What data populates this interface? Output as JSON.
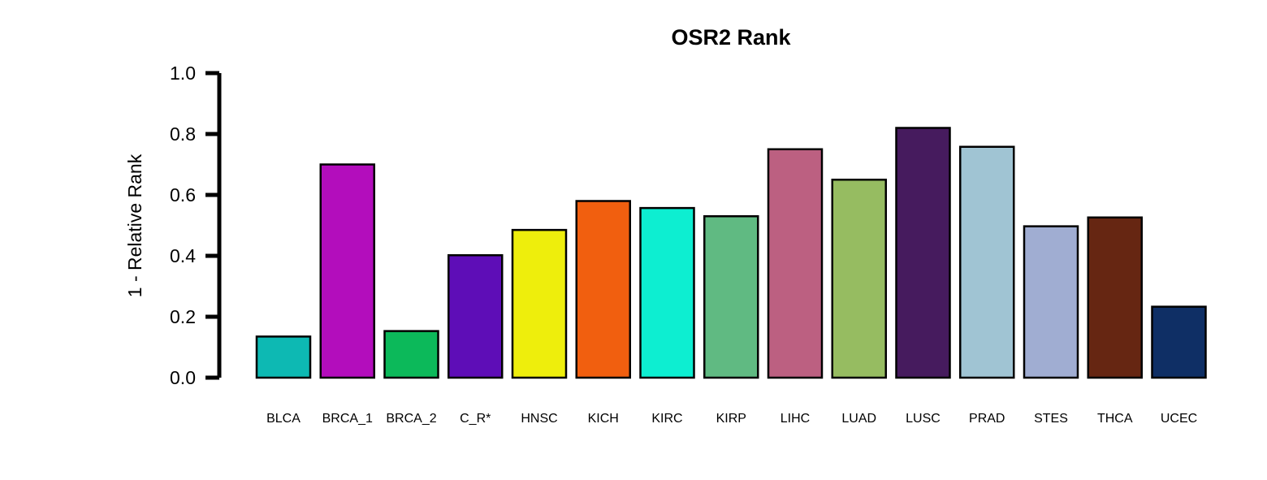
{
  "chart_data": {
    "type": "bar",
    "title": "OSR2 Rank",
    "xlabel": "",
    "ylabel": "1 - Relative Rank",
    "ylim": [
      0,
      1.0
    ],
    "yticks": [
      "0.0",
      "0.2",
      "0.4",
      "0.6",
      "0.8",
      "1.0"
    ],
    "grid": false,
    "legend": "none",
    "categories": [
      "BLCA",
      "BRCA_1",
      "BRCA_2",
      "C_R*",
      "HNSC",
      "KICH",
      "KIRC",
      "KIRP",
      "LIHC",
      "LUAD",
      "LUSC",
      "PRAD",
      "STES",
      "THCA",
      "UCEC"
    ],
    "values": [
      0.135,
      0.7,
      0.153,
      0.402,
      0.485,
      0.58,
      0.557,
      0.53,
      0.75,
      0.65,
      0.82,
      0.758,
      0.497,
      0.526,
      0.233
    ],
    "colors": [
      "#0DB9B3",
      "#B30DBC",
      "#0CB95A",
      "#5E0DB7",
      "#EEEE0C",
      "#F15F0F",
      "#0DEED1",
      "#60BA82",
      "#BC6081",
      "#96BC61",
      "#461B5E",
      "#A0C4D3",
      "#A0ADD2",
      "#662612",
      "#0F2F65"
    ]
  }
}
